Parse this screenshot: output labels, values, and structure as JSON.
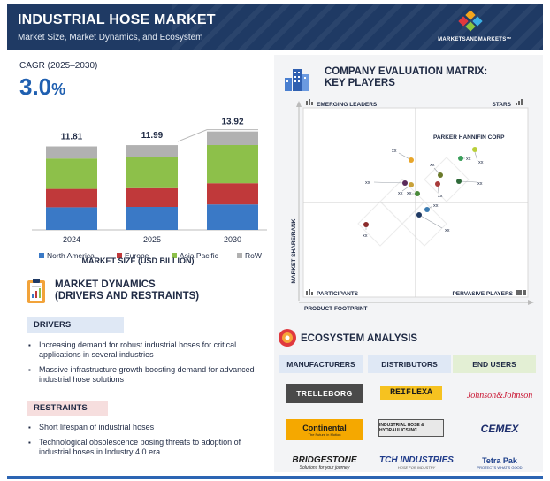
{
  "header": {
    "title": "INDUSTRIAL HOSE MARKET",
    "subtitle": "Market Size, Market Dynamics, and Ecosystem",
    "brand": "MARKETSANDMARKETS™"
  },
  "cagr": {
    "label": "CAGR (2025–2030)",
    "value": "3.0",
    "unit": "%"
  },
  "chart_data": {
    "type": "bar",
    "stacked": true,
    "categories": [
      "2024",
      "2025",
      "2030"
    ],
    "totals": [
      11.81,
      11.99,
      13.92
    ],
    "total_labels": [
      "11.81",
      "11.99",
      "13.92"
    ],
    "series": [
      {
        "name": "North America",
        "color": "#3a79c6",
        "values": [
          3.2,
          3.25,
          3.6
        ]
      },
      {
        "name": "Europe",
        "color": "#c0393a",
        "values": [
          2.6,
          2.65,
          3.0
        ]
      },
      {
        "name": "Asia Pacific",
        "color": "#8dc04a",
        "values": [
          4.3,
          4.4,
          5.4
        ]
      },
      {
        "name": "RoW",
        "color": "#b1b1b1",
        "values": [
          1.71,
          1.69,
          1.92
        ]
      }
    ],
    "title": "MARKET SIZE (USD BILLION)",
    "grid": false,
    "legend_position": "bottom"
  },
  "dynamics": {
    "title_line1": "MARKET DYNAMICS",
    "title_line2": "(DRIVERS AND RESTRAINTS)",
    "drivers_label": "DRIVERS",
    "drivers": [
      "Increasing demand for robust industrial hoses for critical applications in several industries",
      "Massive infrastructure growth boosting demand for advanced industrial hose solutions"
    ],
    "restraints_label": "RESTRAINTS",
    "restraints": [
      "Short lifespan of industrial hoses",
      "Technological obsolescence posing threats to adoption of industrial hoses in Industry 4.0 era"
    ]
  },
  "matrix": {
    "title_line1": "COMPANY EVALUATION MATRIX:",
    "title_line2": "KEY PLAYERS",
    "quadrants": {
      "top_left": "EMERGING LEADERS",
      "top_right": "STARS",
      "bottom_left": "PARTICIPANTS",
      "bottom_right": "PERVASIVE PLAYERS"
    },
    "y_axis": "MARKET SHARE/RANK",
    "x_axis": "PRODUCT FOOTPRINT",
    "highlight": "PARKER HANNIFIN CORP",
    "points": [
      {
        "label": "xx",
        "color": "#b9cf3a"
      },
      {
        "label": "xx",
        "color": "#3a9e5a"
      },
      {
        "label": "xx",
        "color": "#2f6a3a"
      },
      {
        "label": "xx",
        "color": "#e8a62a"
      },
      {
        "label": "xx",
        "color": "#6b7a2a"
      },
      {
        "label": "xx",
        "color": "#a83a3a"
      },
      {
        "label": "xx",
        "color": "#5a2a5a"
      },
      {
        "label": "xx",
        "color": "#3a7ab0"
      },
      {
        "label": "xx",
        "color": "#1f3a64"
      },
      {
        "label": "xx",
        "color": "#c9a23a"
      },
      {
        "label": "xx",
        "color": "#8a2a2a"
      },
      {
        "label": "xx",
        "color": "#4a8a3a"
      }
    ]
  },
  "ecosystem": {
    "title": "ECOSYSTEM ANALYSIS",
    "headers": [
      "MANUFACTURERS",
      "DISTRIBUTORS",
      "END USERS"
    ],
    "manufacturers": {
      "trelleborg": "TRELLEBORG",
      "continental": "Continental",
      "continental_tag": "The Future in Motion",
      "bridgestone": "BRIDGESTONE",
      "bridgestone_tag": "Solutions for your journey"
    },
    "distributors": {
      "reiflexa": "REIFLEXA",
      "ihp": "INDUSTRIAL HOSE & HYDRAULICS INC.",
      "tch": "TCH INDUSTRIES",
      "tch_tag": "HOSE FOR INDUSTRY"
    },
    "end_users": {
      "jj": "Johnson&Johnson",
      "cemex": "CEMEX",
      "tetra": "Tetra Pak",
      "tetra_tag": "PROTECTS WHAT'S GOOD"
    }
  }
}
